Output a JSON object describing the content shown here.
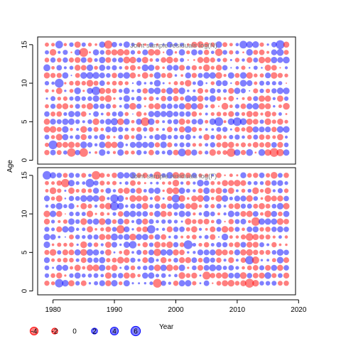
{
  "chart_data": {
    "type": "scatter",
    "ylabel": "Age",
    "xlabel": "",
    "x_range": [
      1979,
      2018
    ],
    "xlim": [
      1977.5,
      2019.5
    ],
    "ylim": [
      -0.5,
      16
    ],
    "x_ticks": [
      1980,
      1990,
      2000,
      2010,
      2020
    ],
    "y_ticks": [
      0,
      5,
      10,
      15
    ],
    "ages": [
      1,
      15
    ],
    "colors": {
      "positive": "#0000ff",
      "negative": "#ff0000",
      "alpha": 0.5
    },
    "legend": {
      "title": "Year",
      "entries": [
        {
          "value": -4,
          "label": "-4"
        },
        {
          "value": -2,
          "label": "-2"
        },
        {
          "value": 0,
          "label": "0"
        },
        {
          "value": 2,
          "label": "2"
        },
        {
          "value": 4,
          "label": "4"
        },
        {
          "value": 6,
          "label": "6"
        }
      ]
    },
    "panels": [
      {
        "title": "Joint sample residuals log(N)",
        "seed": 11
      },
      {
        "title": "Joint sample residuals log(F)",
        "seed": 29
      }
    ]
  }
}
